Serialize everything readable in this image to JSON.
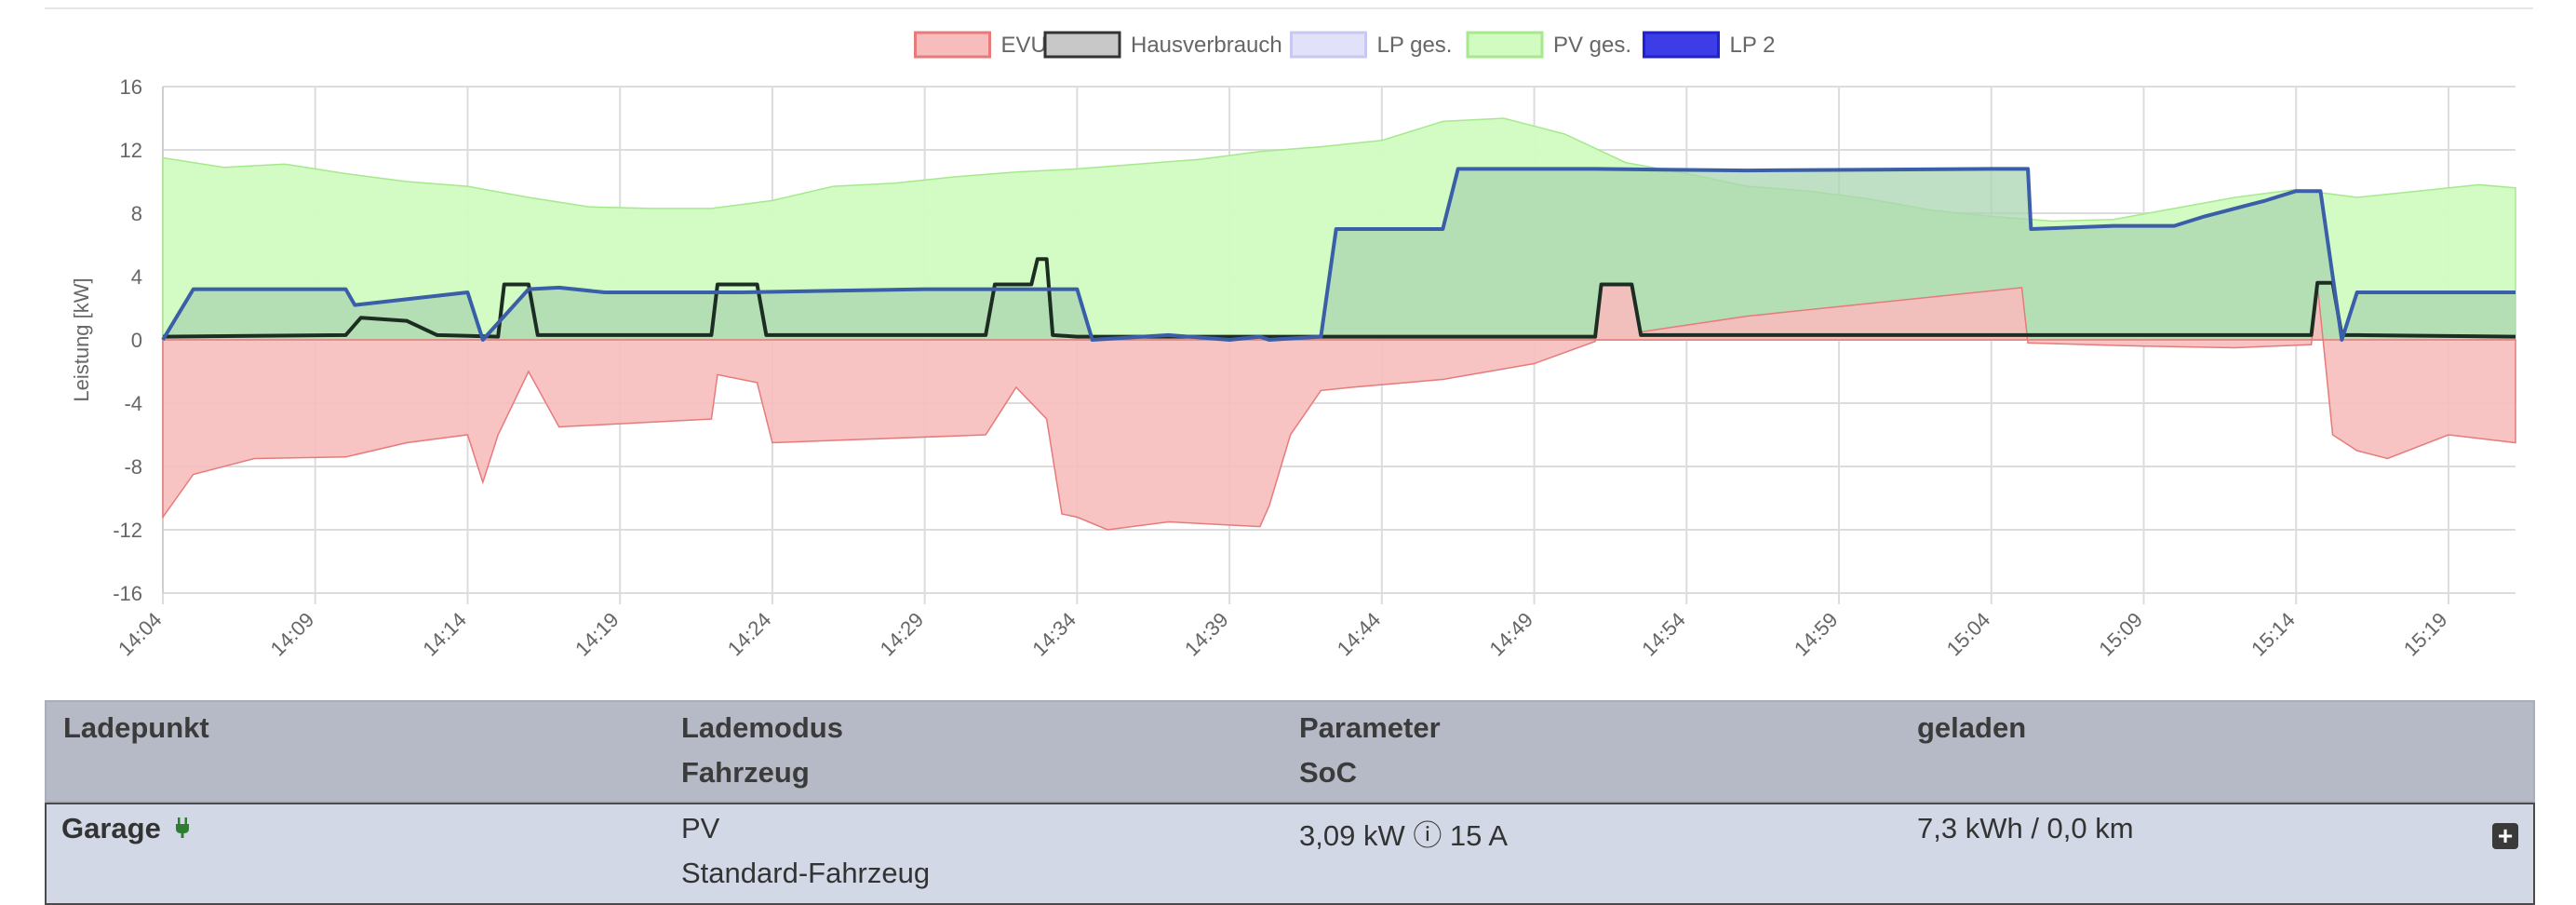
{
  "chart_data": {
    "type": "area",
    "legend": [
      {
        "name": "EVU",
        "fill": "#f7bdbd",
        "stroke": "#e77a7a"
      },
      {
        "name": "Hausverbrauch",
        "fill": "#c8c8c8",
        "stroke": "#1c2e22"
      },
      {
        "name": "LP ges.",
        "fill": "#e1e1fa",
        "stroke": "#c8c8f0"
      },
      {
        "name": "PV ges.",
        "fill": "#d1fbc1",
        "stroke": "#a6e98d"
      },
      {
        "name": "LP 2",
        "fill": "#3d3de8",
        "stroke": "#2222cc"
      }
    ],
    "legend_position": "top-center",
    "ylabel": "Leistung [kW]",
    "ylim": [
      -16,
      16
    ],
    "y_ticks": [
      "16",
      "12",
      "8",
      "4",
      "0",
      "-4",
      "-8",
      "-12",
      "-16"
    ],
    "x_ticks": [
      "14:04",
      "14:09",
      "14:14",
      "14:19",
      "14:24",
      "14:29",
      "14:34",
      "14:39",
      "14:44",
      "14:49",
      "14:54",
      "14:59",
      "15:04",
      "15:09",
      "15:14",
      "15:19"
    ],
    "x_range_min": [
      0,
      77.2
    ],
    "grid": true,
    "series": [
      {
        "name": "PV ges.",
        "x": [
          0,
          2,
          4,
          6,
          8,
          10,
          12,
          14,
          16,
          18,
          20,
          22,
          24,
          26,
          28,
          30,
          32,
          34,
          36,
          38,
          40,
          41,
          42,
          44,
          46,
          48,
          50,
          52,
          54,
          56,
          58,
          60,
          62,
          64,
          66,
          68,
          70,
          72,
          74,
          76,
          77.2
        ],
        "y": [
          11.5,
          10.9,
          11.1,
          10.5,
          10.0,
          9.7,
          9.0,
          8.4,
          8.3,
          8.3,
          8.8,
          9.7,
          9.9,
          10.3,
          10.6,
          10.8,
          11.1,
          11.4,
          11.9,
          12.2,
          12.6,
          13.2,
          13.8,
          14.0,
          13.0,
          11.2,
          10.5,
          9.7,
          9.4,
          8.9,
          8.2,
          7.8,
          7.5,
          7.6,
          8.3,
          9.0,
          9.5,
          9.0,
          9.4,
          9.8,
          9.6
        ]
      },
      {
        "name": "LP ges.",
        "x": [
          0,
          1,
          6,
          6.3,
          10,
          10.5,
          12,
          13,
          14.5,
          19,
          25,
          30,
          30.5,
          33,
          35,
          36,
          36.3,
          38,
          38.5,
          42,
          42.5,
          47,
          52,
          60,
          61.2,
          61.3,
          64,
          66,
          67,
          69,
          70,
          70.8,
          71.5,
          72,
          77.2
        ],
        "y": [
          0,
          3.2,
          3.2,
          2.2,
          3.0,
          0,
          3.2,
          3.3,
          3.0,
          3.0,
          3.2,
          3.2,
          0,
          0.3,
          0,
          0.2,
          0,
          0.2,
          7.0,
          7.0,
          10.8,
          10.8,
          10.7,
          10.8,
          10.8,
          7.0,
          7.2,
          7.2,
          7.8,
          8.8,
          9.4,
          9.4,
          0,
          3.0,
          3.0
        ]
      },
      {
        "name": "LP 2",
        "x": [
          0,
          1,
          6,
          6.3,
          10,
          10.5,
          12,
          13,
          14.5,
          19,
          25,
          30,
          30.5,
          33,
          35,
          36,
          36.3,
          38,
          38.5,
          42,
          42.5,
          47,
          52,
          60,
          61.2,
          61.3,
          64,
          66,
          67,
          69,
          70,
          70.8,
          71.5,
          72,
          77.2
        ],
        "y": [
          0,
          3.2,
          3.2,
          2.2,
          3.0,
          0,
          3.2,
          3.3,
          3.0,
          3.0,
          3.2,
          3.2,
          0,
          0.3,
          0,
          0.2,
          0,
          0.2,
          7.0,
          7.0,
          10.8,
          10.8,
          10.7,
          10.8,
          10.8,
          7.0,
          7.2,
          7.2,
          7.8,
          8.8,
          9.4,
          9.4,
          0,
          3.0,
          3.0
        ]
      },
      {
        "name": "Hausverbrauch",
        "x": [
          0,
          6,
          6.5,
          8,
          9,
          11,
          11.2,
          12,
          12.3,
          18,
          18.2,
          19.5,
          19.8,
          27,
          27.3,
          28.5,
          28.7,
          29,
          29.2,
          30,
          47,
          47.2,
          48.2,
          48.5,
          70.5,
          70.7,
          71.2,
          71.5,
          72,
          77.2
        ],
        "y": [
          0.2,
          0.3,
          1.4,
          1.2,
          0.3,
          0.2,
          3.5,
          3.5,
          0.3,
          0.3,
          3.5,
          3.5,
          0.3,
          0.3,
          3.5,
          3.5,
          5.1,
          5.1,
          0.3,
          0.2,
          0.2,
          3.5,
          3.5,
          0.3,
          0.3,
          3.6,
          3.6,
          0.3,
          0.3,
          0.2
        ]
      },
      {
        "name": "EVU",
        "x": [
          0,
          1,
          3,
          6,
          8,
          10,
          10.5,
          11,
          12,
          13,
          18,
          18.2,
          19.5,
          20,
          27,
          28,
          29,
          29.5,
          30,
          31,
          33,
          36,
          36.3,
          37,
          38,
          39,
          42,
          45,
          47,
          47.2,
          48.2,
          48.5,
          52,
          61,
          61.2,
          61.3,
          65,
          68,
          70.5,
          70.7,
          71.2,
          72,
          73,
          75,
          77.2
        ],
        "y": [
          -11.2,
          -8.5,
          -7.5,
          -7.4,
          -6.5,
          -6.0,
          -9.0,
          -6.0,
          -2.0,
          -5.5,
          -5.0,
          -2.2,
          -2.7,
          -6.5,
          -6.0,
          -3.0,
          -5.0,
          -11.0,
          -11.2,
          -12.0,
          -11.5,
          -11.8,
          -10.5,
          -6.0,
          -3.2,
          -3.0,
          -2.5,
          -1.5,
          -0.1,
          3.5,
          3.5,
          0.5,
          1.5,
          3.3,
          -0.2,
          -0.2,
          -0.4,
          -0.5,
          -0.3,
          3.5,
          -6.0,
          -7.0,
          -7.5,
          -6.0,
          -6.5
        ]
      }
    ]
  },
  "table": {
    "headers": {
      "ladepunkt": "Ladepunkt",
      "lademodus": "Lademodus",
      "fahrzeug": "Fahrzeug",
      "parameter": "Parameter",
      "soc": "SoC",
      "geladen": "geladen"
    },
    "rows": [
      {
        "name": "Garage",
        "plug_icon": "plug-icon",
        "mode": "PV",
        "vehicle": "Standard-Fahrzeug",
        "parameter": "3,09 kW ⓘ 15 A",
        "charged": "7,3 kWh / 0,0 km",
        "expand_icon": "plus-square-icon"
      }
    ]
  }
}
